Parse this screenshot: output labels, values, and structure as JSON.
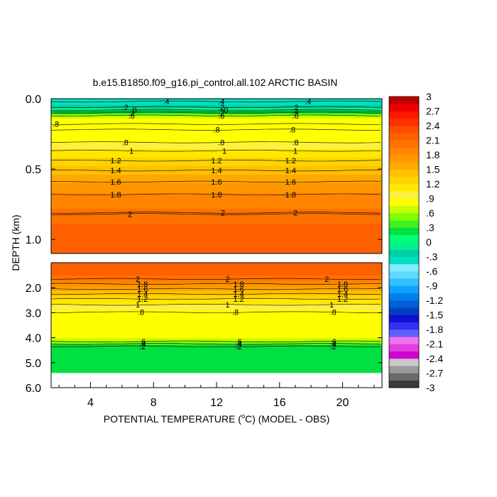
{
  "chart_data": {
    "type": "heatmap",
    "title": "b.e15.B1850.f09_g16.pi_control.all.102 ARCTIC BASIN",
    "xlabel": "POTENTIAL TEMPERATURE (°C) (MODEL - OBS)",
    "xlabel_parts": {
      "pre": "POTENTIAL TEMPERATURE (",
      "sup": "o",
      "post": "C) (MODEL - OBS)"
    },
    "ylabel": "DEPTH (km)",
    "xlim": [
      1.5,
      22.5
    ],
    "x_ticks": [
      "4",
      "8",
      "12",
      "16",
      "20"
    ],
    "x_tick_values": [
      4,
      8,
      12,
      16,
      20
    ],
    "upper_panel": {
      "ylim": [
        0.0,
        1.1
      ],
      "y_ticks": [
        "0.0",
        "0.5",
        "1.0"
      ],
      "y_tick_values": [
        0.0,
        0.5,
        1.0
      ],
      "profile": [
        {
          "depth": 0.0,
          "value": -0.4
        },
        {
          "depth": 0.03,
          "value": -0.4
        },
        {
          "depth": 0.06,
          "value": -0.2
        },
        {
          "depth": 0.08,
          "value": 0.0
        },
        {
          "depth": 0.1,
          "value": 0.3
        },
        {
          "depth": 0.12,
          "value": 0.6
        },
        {
          "depth": 0.14,
          "value": 0.75
        },
        {
          "depth": 0.25,
          "value": 0.8
        },
        {
          "depth": 0.3,
          "value": 0.85
        },
        {
          "depth": 0.34,
          "value": 1.0
        },
        {
          "depth": 0.42,
          "value": 1.2
        },
        {
          "depth": 0.5,
          "value": 1.4
        },
        {
          "depth": 0.58,
          "value": 1.6
        },
        {
          "depth": 0.67,
          "value": 1.8
        },
        {
          "depth": 0.82,
          "value": 2.0
        },
        {
          "depth": 0.92,
          "value": 2.15
        },
        {
          "depth": 1.1,
          "value": 2.2
        }
      ],
      "contour_labels": [
        {
          "text": ".4",
          "x": 8.8,
          "depth": 0.02
        },
        {
          "text": ".2",
          "x": 6.2,
          "depth": 0.06
        },
        {
          "text": "0",
          "x": 6.8,
          "depth": 0.08
        },
        {
          "text": ".2",
          "x": 6.6,
          "depth": 0.1
        },
        {
          "text": ".6",
          "x": 6.6,
          "depth": 0.12
        },
        {
          "text": ".2",
          "x": 12.3,
          "depth": 0.06
        },
        {
          "text": "0",
          "x": 12.6,
          "depth": 0.08
        },
        {
          "text": ".2",
          "x": 12.3,
          "depth": 0.1
        },
        {
          "text": ".6",
          "x": 12.3,
          "depth": 0.12
        },
        {
          "text": ".4",
          "x": 12.3,
          "depth": 0.02
        },
        {
          "text": ".4",
          "x": 17.8,
          "depth": 0.02
        },
        {
          "text": ".2",
          "x": 17.0,
          "depth": 0.06
        },
        {
          "text": ".4",
          "x": 17.0,
          "depth": 0.09
        },
        {
          "text": ".6",
          "x": 17.0,
          "depth": 0.12
        },
        {
          "text": ".8",
          "x": 1.8,
          "depth": 0.18
        },
        {
          "text": ".8",
          "x": 12.0,
          "depth": 0.22
        },
        {
          "text": ".8",
          "x": 16.8,
          "depth": 0.22
        },
        {
          "text": ".8",
          "x": 6.2,
          "depth": 0.31
        },
        {
          "text": ".8",
          "x": 12.3,
          "depth": 0.31
        },
        {
          "text": ".8",
          "x": 17.0,
          "depth": 0.31
        },
        {
          "text": "1",
          "x": 6.6,
          "depth": 0.37
        },
        {
          "text": "1",
          "x": 12.5,
          "depth": 0.37
        },
        {
          "text": "1",
          "x": 17.0,
          "depth": 0.37
        },
        {
          "text": "1.2",
          "x": 5.6,
          "depth": 0.44
        },
        {
          "text": "1.2",
          "x": 12.0,
          "depth": 0.44
        },
        {
          "text": "1.2",
          "x": 16.7,
          "depth": 0.44
        },
        {
          "text": "1.4",
          "x": 5.6,
          "depth": 0.51
        },
        {
          "text": "1.4",
          "x": 12.0,
          "depth": 0.51
        },
        {
          "text": "1.4",
          "x": 16.7,
          "depth": 0.51
        },
        {
          "text": "1.6",
          "x": 5.6,
          "depth": 0.59
        },
        {
          "text": "1.6",
          "x": 12.0,
          "depth": 0.59
        },
        {
          "text": "1.6",
          "x": 16.7,
          "depth": 0.59
        },
        {
          "text": "1.8",
          "x": 5.6,
          "depth": 0.68
        },
        {
          "text": "1.8",
          "x": 12.0,
          "depth": 0.68
        },
        {
          "text": "1.8",
          "x": 16.7,
          "depth": 0.68
        },
        {
          "text": "2",
          "x": 6.5,
          "depth": 0.82
        },
        {
          "text": "2",
          "x": 12.4,
          "depth": 0.81
        },
        {
          "text": "2",
          "x": 17.0,
          "depth": 0.81
        }
      ]
    },
    "lower_panel": {
      "ylim": [
        1.0,
        6.0
      ],
      "y_ticks": [
        "2.0",
        "3.0",
        "4.0",
        "5.0",
        "6.0"
      ],
      "y_tick_values": [
        2.0,
        3.0,
        4.0,
        5.0,
        6.0
      ],
      "data_bottom_depth": 5.4,
      "profile": [
        {
          "depth": 1.0,
          "value": 2.2
        },
        {
          "depth": 1.5,
          "value": 2.1
        },
        {
          "depth": 1.65,
          "value": 2.0
        },
        {
          "depth": 1.85,
          "value": 1.8
        },
        {
          "depth": 2.05,
          "value": 1.6
        },
        {
          "depth": 2.25,
          "value": 1.4
        },
        {
          "depth": 2.45,
          "value": 1.2
        },
        {
          "depth": 2.7,
          "value": 1.0
        },
        {
          "depth": 3.0,
          "value": 0.85
        },
        {
          "depth": 3.4,
          "value": 0.8
        },
        {
          "depth": 4.0,
          "value": 0.78
        },
        {
          "depth": 4.15,
          "value": 0.6
        },
        {
          "depth": 4.25,
          "value": 0.4
        },
        {
          "depth": 4.35,
          "value": 0.2
        },
        {
          "depth": 4.5,
          "value": 0.15
        },
        {
          "depth": 5.4,
          "value": 0.15
        }
      ],
      "contour_labels": [
        {
          "text": "2",
          "x": 7.0,
          "depth": 1.65
        },
        {
          "text": "1.8",
          "x": 7.3,
          "depth": 1.85
        },
        {
          "text": "1.6",
          "x": 7.3,
          "depth": 2.05
        },
        {
          "text": "1.4",
          "x": 7.3,
          "depth": 2.25
        },
        {
          "text": "1.2",
          "x": 7.3,
          "depth": 2.45
        },
        {
          "text": "1",
          "x": 7.0,
          "depth": 2.68
        },
        {
          "text": ".8",
          "x": 7.2,
          "depth": 2.98
        },
        {
          "text": "2",
          "x": 12.7,
          "depth": 1.65
        },
        {
          "text": "1.8",
          "x": 13.4,
          "depth": 1.85
        },
        {
          "text": "1.6",
          "x": 13.4,
          "depth": 2.05
        },
        {
          "text": "1.4",
          "x": 13.4,
          "depth": 2.25
        },
        {
          "text": "1.2",
          "x": 13.4,
          "depth": 2.45
        },
        {
          "text": "1",
          "x": 12.7,
          "depth": 2.68
        },
        {
          "text": ".8",
          "x": 13.2,
          "depth": 2.98
        },
        {
          "text": "2",
          "x": 19.0,
          "depth": 1.65
        },
        {
          "text": "1.8",
          "x": 20.0,
          "depth": 1.85
        },
        {
          "text": "1.6",
          "x": 20.0,
          "depth": 2.05
        },
        {
          "text": "1.4",
          "x": 20.0,
          "depth": 2.25
        },
        {
          "text": "1.2",
          "x": 20.0,
          "depth": 2.45
        },
        {
          "text": "1",
          "x": 19.3,
          "depth": 2.68
        },
        {
          "text": ".8",
          "x": 19.4,
          "depth": 2.98
        },
        {
          "text": ".6",
          "x": 7.3,
          "depth": 4.15
        },
        {
          "text": ".4",
          "x": 7.3,
          "depth": 4.25
        },
        {
          "text": ".2",
          "x": 7.3,
          "depth": 4.35
        },
        {
          "text": ".6",
          "x": 13.4,
          "depth": 4.15
        },
        {
          "text": ".4",
          "x": 13.4,
          "depth": 4.25
        },
        {
          "text": ".2",
          "x": 13.4,
          "depth": 4.35
        },
        {
          "text": ".6",
          "x": 19.4,
          "depth": 4.15
        },
        {
          "text": ".4",
          "x": 19.4,
          "depth": 4.25
        },
        {
          "text": ".2",
          "x": 19.4,
          "depth": 4.35
        }
      ]
    },
    "colorbar": {
      "min": -3,
      "max": 3,
      "labels": [
        "3",
        "2.7",
        "2.4",
        "2.1",
        "1.8",
        "1.5",
        "1.2",
        ".9",
        ".6",
        ".3",
        "0",
        "-.3",
        "-.6",
        "-.9",
        "-1.2",
        "-1.5",
        "-1.8",
        "-2.1",
        "-2.4",
        "-2.7",
        "-3"
      ],
      "label_values": [
        3,
        2.7,
        2.4,
        2.1,
        1.8,
        1.5,
        1.2,
        0.9,
        0.6,
        0.3,
        0,
        -0.3,
        -0.6,
        -0.9,
        -1.2,
        -1.5,
        -1.8,
        -2.1,
        -2.4,
        -2.7,
        -3
      ],
      "colors": [
        "#3a3a3a",
        "#6a6a6a",
        "#9a9a9a",
        "#c8c8c8",
        "#d000d0",
        "#e040e0",
        "#f070f0",
        "#6060ff",
        "#3030f0",
        "#1010d0",
        "#0040c0",
        "#0060d8",
        "#0080f0",
        "#10a0ff",
        "#30c0ff",
        "#60d8ff",
        "#80ecff",
        "#00e0c0",
        "#00d0a0",
        "#00f090",
        "#00ff70",
        "#00e040",
        "#40f020",
        "#80ff00",
        "#c8ff00",
        "#ffff00",
        "#fff040",
        "#ffe800",
        "#ffd400",
        "#ffc000",
        "#ffa800",
        "#ff9600",
        "#ff8400",
        "#ff7200",
        "#ff6000",
        "#ff4a00",
        "#ff3000",
        "#ff1800",
        "#ee0000",
        "#c00000"
      ]
    }
  }
}
